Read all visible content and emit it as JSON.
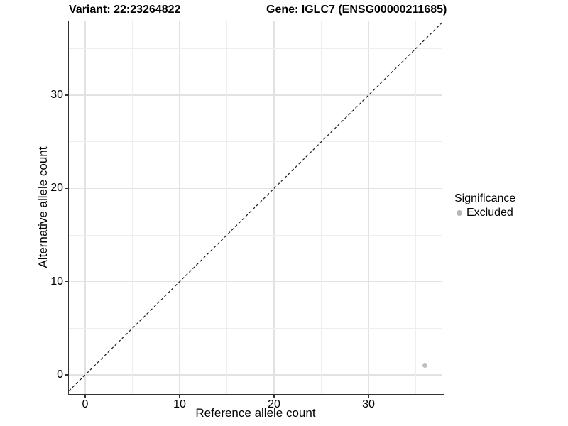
{
  "titles": {
    "variant": "Variant: 22:23264822",
    "gene": "Gene: IGLC7 (ENSG00000211685)"
  },
  "chart_data": {
    "type": "scatter",
    "xlabel": "Reference allele count",
    "ylabel": "Alternative allele count",
    "xlim": [
      -1.73,
      37.82
    ],
    "ylim": [
      -2.06,
      37.93
    ],
    "x_ticks": [
      0,
      10,
      20,
      30
    ],
    "y_ticks": [
      0,
      10,
      20,
      30
    ],
    "x_minor_ticks": [
      5,
      15,
      25,
      35
    ],
    "y_minor_ticks": [
      5,
      15,
      25,
      35
    ],
    "grid": "major+minor",
    "identity_line": {
      "slope": 1,
      "intercept": 0,
      "style": "dashed",
      "color": "#1a1a1a"
    },
    "points": [
      {
        "x": 36,
        "y": 1,
        "significance": "Excluded"
      }
    ],
    "legend": {
      "title": "Significance",
      "position": "right",
      "entries": [
        {
          "label": "Excluded",
          "color": "#b7b7b7"
        }
      ]
    },
    "colors": {
      "grid_major": "#e2e2e2",
      "grid_minor": "#eeeeee",
      "axis_line": "#333333",
      "point": "#bfbfbf",
      "text": "#000000"
    }
  }
}
